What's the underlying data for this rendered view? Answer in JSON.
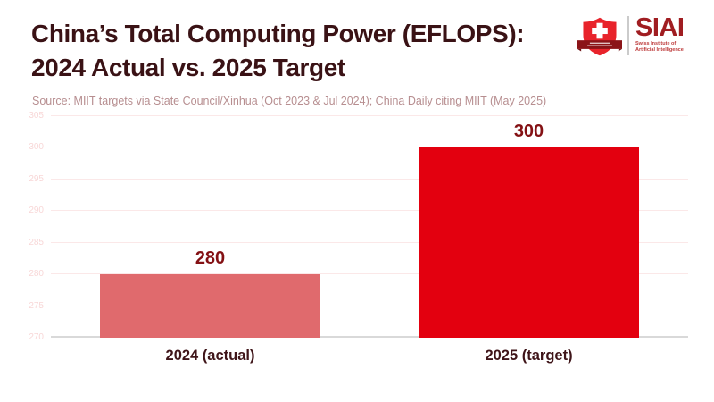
{
  "header": {
    "title_line1": "China’s Total Computing Power (EFLOPS):",
    "title_line2": "2024 Actual vs. 2025 Target",
    "source": "Source: MIIT targets via State Council/Xinhua (Oct 2023 & Jul 2024); China Daily citing MIIT (May 2025)"
  },
  "logo": {
    "shield_icon": "swiss-shield-icon",
    "wordmark": "SIAI",
    "subtitle_line1": "Swiss Institute of",
    "subtitle_line2": "Artificial Intelligence"
  },
  "chart_data": {
    "type": "bar",
    "title": "China’s Total Computing Power (EFLOPS): 2024 Actual vs. 2025 Target",
    "categories": [
      "2024 (actual)",
      "2025 (target)"
    ],
    "values": [
      280,
      300
    ],
    "value_labels": [
      "280",
      "300"
    ],
    "xlabel": "",
    "ylabel": "",
    "ylim": [
      270,
      305
    ],
    "yticks": [
      270,
      275,
      280,
      285,
      290,
      295,
      300,
      305
    ],
    "grid": true,
    "legend": "none",
    "bar_colors": [
      "#e06a6d",
      "#e3000f"
    ],
    "bar_width_pct": 34.5
  },
  "colors": {
    "background": "#ffffff",
    "title": "#3a1215",
    "source": "#b78e90",
    "value_label": "#841114",
    "category_label": "#3f1519",
    "tick_label": "#f8d7d7",
    "gridline": "#fbe8e8",
    "baseline": "#d9d9d9",
    "logo_wordmark": "#a01d21",
    "logo_subtitle": "#bd3a3a",
    "shield_red": "#e8232b",
    "ribbon_dark": "#8b1418",
    "divider": "#cbcbcb"
  }
}
